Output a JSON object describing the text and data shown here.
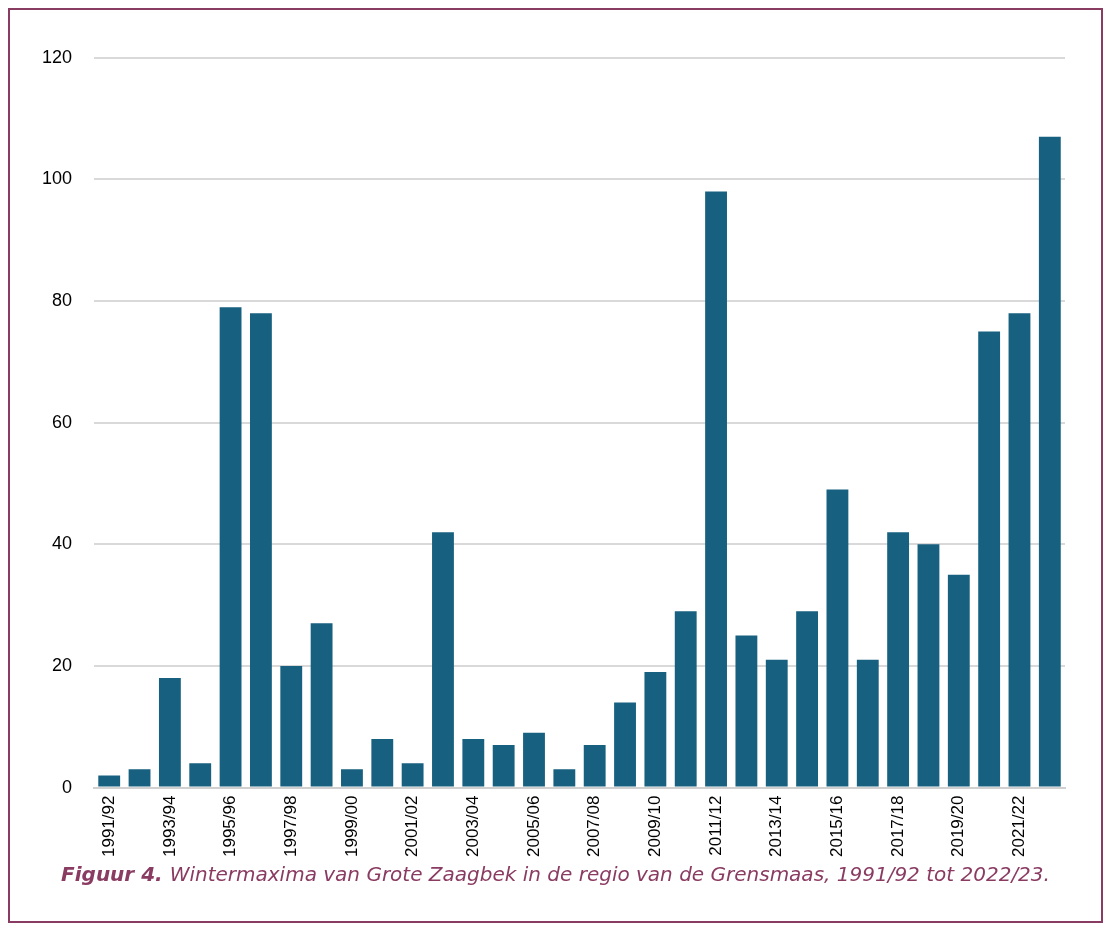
{
  "chart_data": {
    "type": "bar",
    "categories": [
      "1991/92",
      null,
      "1993/94",
      null,
      "1995/96",
      null,
      "1997/98",
      null,
      "1999/00",
      null,
      "2001/02",
      null,
      "2003/04",
      null,
      "2005/06",
      null,
      "2007/08",
      null,
      "2009/10",
      null,
      "2011/12",
      null,
      "2013/14",
      null,
      "2015/16",
      null,
      "2017/18",
      null,
      "2019/20",
      null,
      "2021/22",
      null
    ],
    "values": [
      2,
      3,
      18,
      4,
      79,
      78,
      20,
      27,
      3,
      8,
      4,
      42,
      8,
      7,
      9,
      3,
      7,
      14,
      19,
      29,
      98,
      25,
      21,
      29,
      49,
      21,
      42,
      40,
      35,
      75,
      78,
      107
    ],
    "color": "#17607f",
    "ylim": [
      0,
      120
    ],
    "yticks": [
      0,
      20,
      40,
      60,
      80,
      100,
      120
    ],
    "grid": "y",
    "legend": false,
    "annotations": [
      "Figuur 4.",
      "Wintermaxima van Grote Zaagbek in de regio van de Grensmaas, 1991/92 tot 2022/23."
    ]
  }
}
